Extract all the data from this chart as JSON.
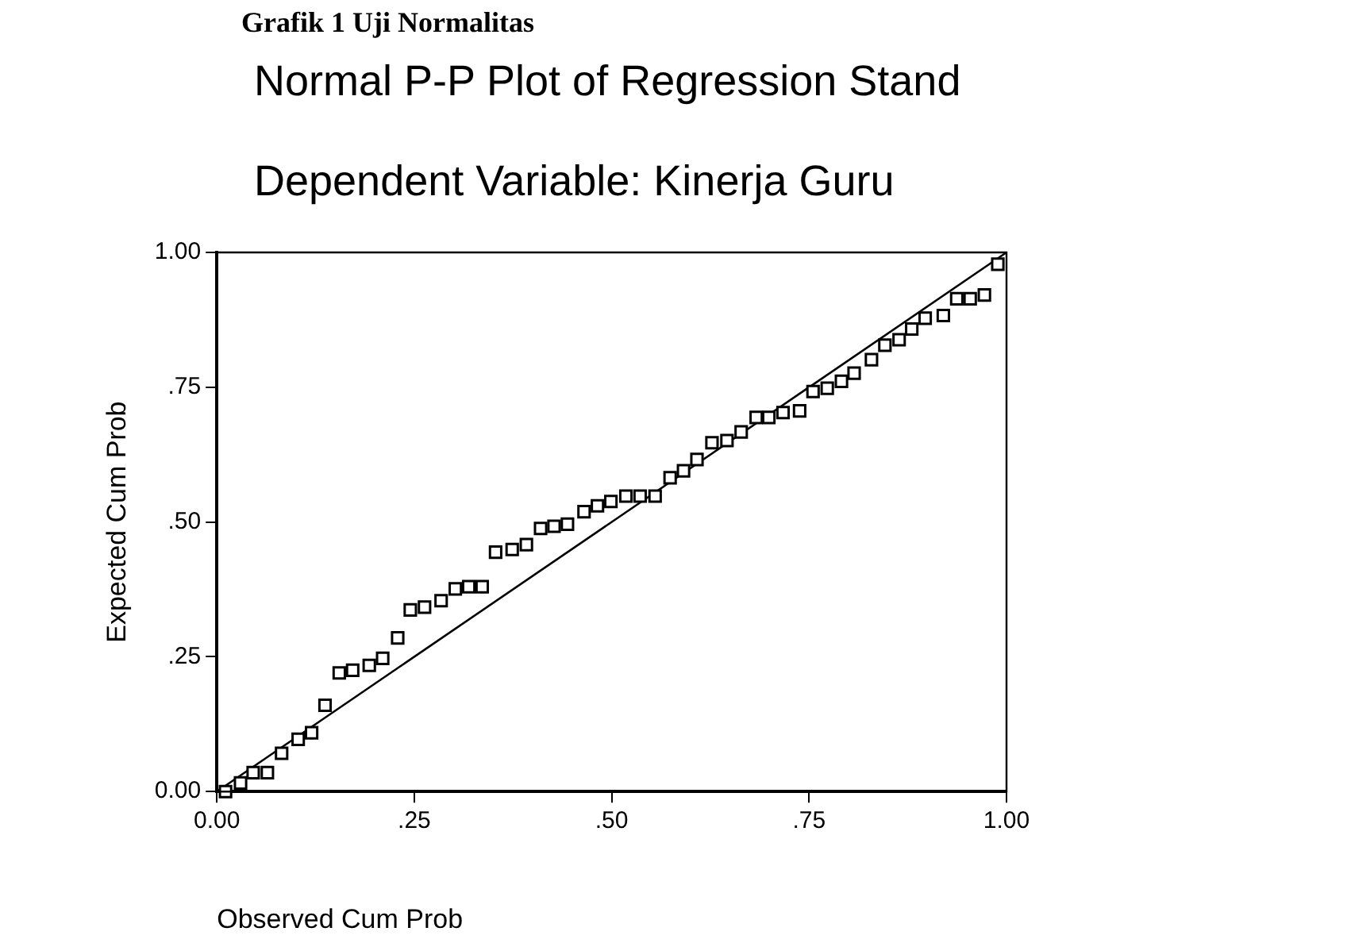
{
  "chart_data": {
    "type": "scatter",
    "title": "Grafik 1 Uji Normalitas",
    "subtitle": "Normal P-P Plot of Regression Stand",
    "annotations": [
      "Dependent Variable: Kinerja Guru"
    ],
    "xlabel": "Observed Cum Prob",
    "ylabel": "Expected Cum Prob",
    "xlim": [
      0,
      1
    ],
    "ylim": [
      0,
      1
    ],
    "xticks": [
      {
        "value": 0,
        "label": "0.00"
      },
      {
        "value": 0.25,
        "label": ".25"
      },
      {
        "value": 0.5,
        "label": ".50"
      },
      {
        "value": 0.75,
        "label": ".75"
      },
      {
        "value": 1,
        "label": "1.00"
      }
    ],
    "yticks": [
      {
        "value": 0,
        "label": "0.00"
      },
      {
        "value": 0.25,
        "label": ".25"
      },
      {
        "value": 0.5,
        "label": ".50"
      },
      {
        "value": 0.75,
        "label": ".75"
      },
      {
        "value": 1,
        "label": "1.00"
      }
    ],
    "grid": false,
    "legend": false,
    "series": [
      {
        "color": "#000000",
        "marker": "square",
        "x": [
          0.011,
          0.03,
          0.046,
          0.064,
          0.082,
          0.103,
          0.12,
          0.137,
          0.155,
          0.172,
          0.193,
          0.21,
          0.229,
          0.245,
          0.263,
          0.284,
          0.302,
          0.319,
          0.336,
          0.353,
          0.374,
          0.392,
          0.41,
          0.427,
          0.444,
          0.465,
          0.482,
          0.499,
          0.518,
          0.536,
          0.555,
          0.574,
          0.591,
          0.608,
          0.627,
          0.646,
          0.664,
          0.683,
          0.699,
          0.717,
          0.738,
          0.755,
          0.773,
          0.791,
          0.807,
          0.829,
          0.846,
          0.864,
          0.88,
          0.897,
          0.92,
          0.937,
          0.954,
          0.972,
          0.989
        ],
        "values": [
          0.0,
          0.016,
          0.035,
          0.035,
          0.071,
          0.097,
          0.109,
          0.16,
          0.22,
          0.225,
          0.234,
          0.247,
          0.285,
          0.337,
          0.342,
          0.354,
          0.376,
          0.38,
          0.38,
          0.444,
          0.449,
          0.458,
          0.488,
          0.492,
          0.496,
          0.519,
          0.53,
          0.538,
          0.548,
          0.548,
          0.548,
          0.582,
          0.595,
          0.616,
          0.647,
          0.651,
          0.667,
          0.694,
          0.694,
          0.703,
          0.706,
          0.742,
          0.748,
          0.761,
          0.776,
          0.801,
          0.828,
          0.838,
          0.858,
          0.878,
          0.883,
          0.914,
          0.914,
          0.921,
          0.978
        ]
      },
      {
        "type": "line",
        "color": "#000000",
        "marker": "none",
        "x": [
          0,
          1
        ],
        "values": [
          0,
          1
        ]
      }
    ]
  }
}
